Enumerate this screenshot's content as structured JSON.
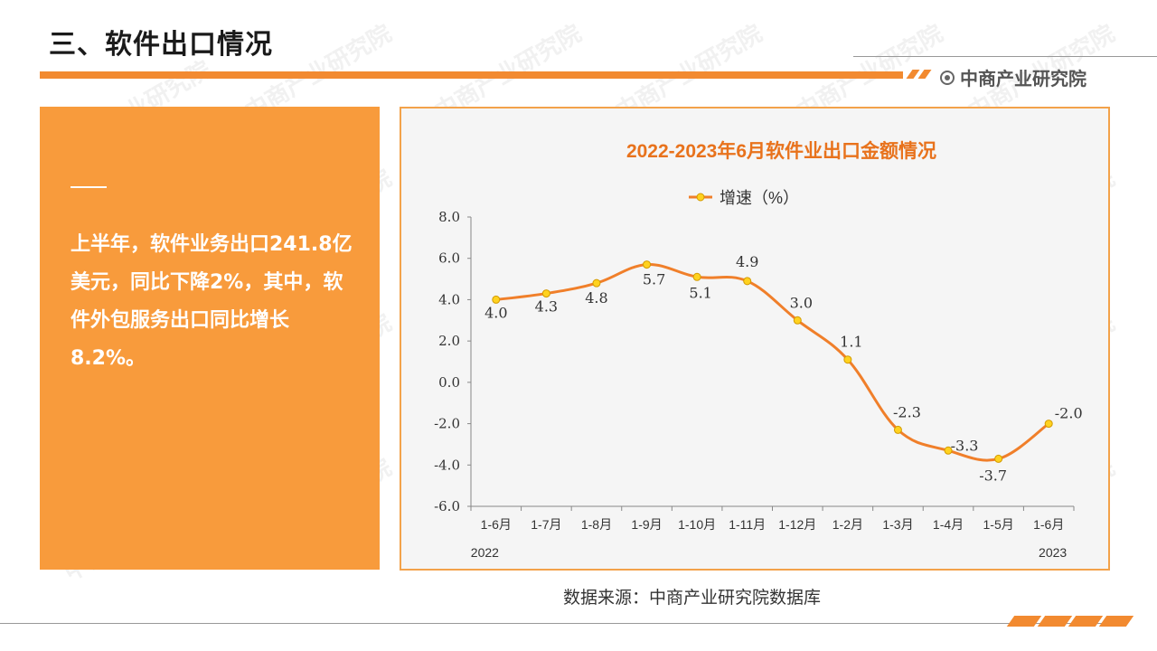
{
  "header": {
    "title": "三、软件出口情况",
    "brand": "中商产业研究院"
  },
  "left_panel": {
    "text": "上半年，软件业务出口241.8亿美元，同比下降2%，其中，软件外包服务出口同比增长8.2%。"
  },
  "footer": {
    "source": "数据来源：中商产业研究院数据库"
  },
  "chart_data": {
    "type": "line",
    "title": "2022-2023年6月软件业出口金额情况",
    "categories": [
      "1-6月",
      "1-7月",
      "1-8月",
      "1-9月",
      "1-10月",
      "1-11月",
      "1-12月",
      "1-2月",
      "1-3月",
      "1-4月",
      "1-5月",
      "1-6月"
    ],
    "year_labels": [
      "2022",
      "2023"
    ],
    "series": [
      {
        "name": "增速（%）",
        "values": [
          4.0,
          4.3,
          4.8,
          5.7,
          5.1,
          4.9,
          3.0,
          1.1,
          -2.3,
          -3.3,
          -3.7,
          -2.0
        ]
      }
    ],
    "value_labels": [
      "4.0",
      "4.3",
      "4.8",
      "5.7",
      "5.1",
      "4.9",
      "3.0",
      "1.1",
      "-2.3",
      "-3.3",
      "-3.7",
      "-2.0"
    ],
    "y_ticks": [
      "8.0",
      "6.0",
      "4.0",
      "2.0",
      "0.0",
      "-2.0",
      "-4.0",
      "-6.0"
    ],
    "ylim": [
      -6,
      8
    ],
    "legend_position": "top-center",
    "line_color": "#f07f2a",
    "marker_color": "#ffd21f",
    "title_color": "#e8721c"
  }
}
